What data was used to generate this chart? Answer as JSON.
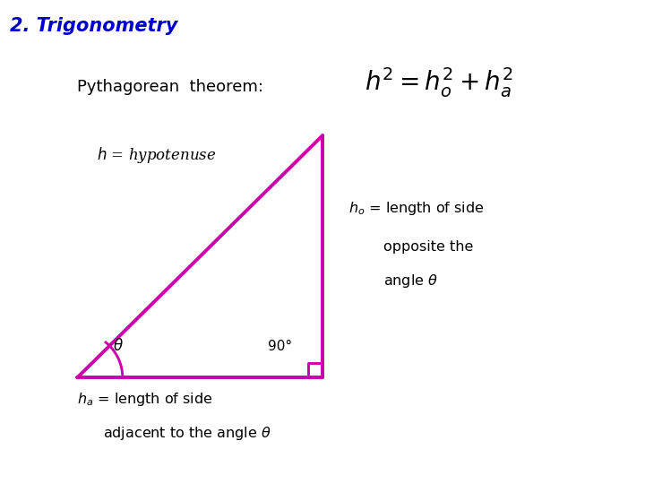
{
  "title": "2. Trigonometry",
  "title_color": "#0000CC",
  "background_color": "#ffffff",
  "triangle_color": "#CC00AA",
  "triangle_linewidth": 2.8,
  "pythagorean_eq": "$h^2 = h_o^2 + h_a^2$",
  "label_pythagorean_theorem": "Pythagorean  theorem:",
  "label_h_hypotenuse": "$h$ = hypotenuse",
  "label_theta": "$\\theta$",
  "label_90": "90°",
  "label_ho_line1": "$h_o$ = length of side",
  "label_ho_line2": "opposite the",
  "label_ho_line3": "angle $\\theta$",
  "label_ha_line1": "$h_a$ = length of side",
  "label_ha_line2": "adjacent to the angle $\\theta$",
  "bl": [
    0.12,
    0.22
  ],
  "br": [
    0.5,
    0.22
  ],
  "tr": [
    0.5,
    0.72
  ]
}
